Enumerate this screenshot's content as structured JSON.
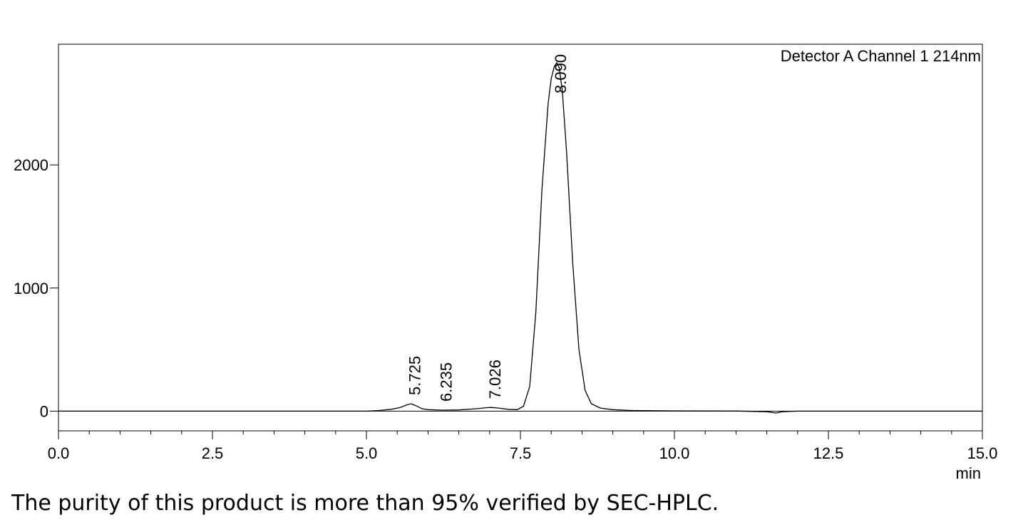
{
  "chart_data": {
    "type": "line",
    "channel_label": "Detector A Channel 1 214nm",
    "xlabel": "min",
    "ylabel": "",
    "xlim": [
      0.0,
      15.0
    ],
    "ylim": [
      -160,
      2980
    ],
    "x_ticks": [
      "0.0",
      "2.5",
      "5.0",
      "7.5",
      "10.0",
      "12.5",
      "15.0"
    ],
    "x_tick_values": [
      0.0,
      2.5,
      5.0,
      7.5,
      10.0,
      12.5,
      15.0
    ],
    "y_ticks": [
      "0",
      "1000",
      "2000"
    ],
    "y_tick_values": [
      0,
      1000,
      2000
    ],
    "grid": false,
    "peaks": [
      {
        "rt": 5.725,
        "label": "5.725",
        "height": 60
      },
      {
        "rt": 6.235,
        "label": "6.235",
        "height": 8
      },
      {
        "rt": 7.026,
        "label": "7.026",
        "height": 30
      },
      {
        "rt": 8.09,
        "label": "8.090",
        "height": 2830
      }
    ],
    "series": [
      {
        "x": [
          0.0,
          5.0,
          5.2,
          5.4,
          5.55,
          5.65,
          5.725,
          5.8,
          5.9,
          6.0,
          6.235,
          6.5,
          6.8,
          6.95,
          7.026,
          7.15,
          7.3,
          7.45,
          7.55,
          7.65,
          7.75,
          7.85,
          7.95,
          8.0,
          8.05,
          8.09,
          8.13,
          8.18,
          8.25,
          8.35,
          8.45,
          8.55,
          8.65,
          8.8,
          9.0,
          9.3,
          10.0,
          11.0,
          11.5,
          11.65,
          11.75,
          12.0,
          13.0,
          15.0
        ],
        "y": [
          0,
          0,
          5,
          15,
          30,
          50,
          60,
          45,
          20,
          12,
          8,
          10,
          20,
          28,
          30,
          25,
          15,
          12,
          40,
          200,
          800,
          1800,
          2500,
          2700,
          2800,
          2830,
          2790,
          2600,
          2100,
          1200,
          500,
          170,
          60,
          25,
          12,
          5,
          2,
          1,
          -5,
          -15,
          -5,
          0,
          0,
          0
        ]
      }
    ]
  },
  "caption": "The purity of this product is more than 95% verified by SEC-HPLC."
}
